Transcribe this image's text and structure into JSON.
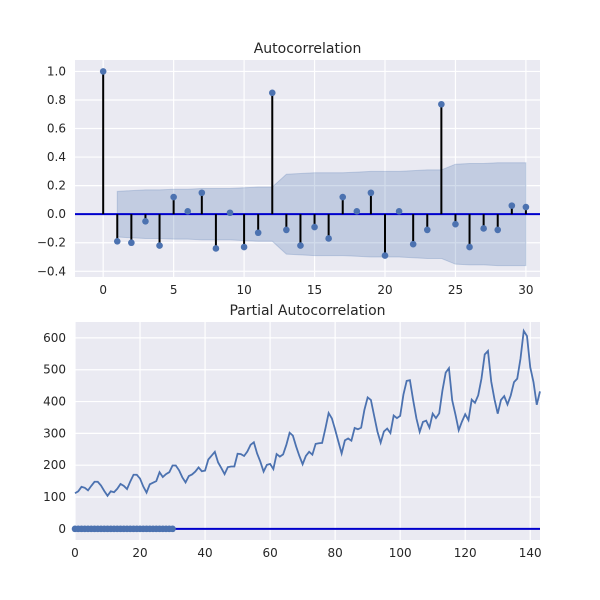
{
  "colors": {
    "background": "#eaeaf2",
    "grid": "#ffffff",
    "marker": "#4c72b0",
    "stem": "#000000",
    "zero_line": "#0000cc",
    "confint": "#4c72b0",
    "series_line": "#4c72b0"
  },
  "chart_data": [
    {
      "type": "stem",
      "title": "Autocorrelation",
      "xlim": [
        -2,
        31
      ],
      "ylim": [
        -0.44,
        1.08
      ],
      "xticks": [
        0,
        5,
        10,
        15,
        20,
        25,
        30
      ],
      "yticks": [
        -0.4,
        -0.2,
        0.0,
        0.2,
        0.4,
        0.6,
        0.8,
        1.0
      ],
      "xtick_labels": [
        "0",
        "5",
        "10",
        "15",
        "20",
        "25",
        "30"
      ],
      "ytick_labels": [
        "−0.4",
        "−0.2",
        "0.0",
        "0.2",
        "0.4",
        "0.6",
        "0.8",
        "1.0"
      ],
      "grid": true,
      "lags": [
        0,
        1,
        2,
        3,
        4,
        5,
        6,
        7,
        8,
        9,
        10,
        11,
        12,
        13,
        14,
        15,
        16,
        17,
        18,
        19,
        20,
        21,
        22,
        23,
        24,
        25,
        26,
        27,
        28,
        29,
        30
      ],
      "values": [
        1.0,
        -0.19,
        -0.2,
        -0.05,
        -0.22,
        0.12,
        0.02,
        0.15,
        -0.24,
        0.01,
        -0.23,
        -0.13,
        0.85,
        -0.11,
        -0.22,
        -0.09,
        -0.17,
        0.12,
        0.02,
        0.15,
        -0.29,
        0.02,
        -0.21,
        -0.11,
        0.77,
        -0.07,
        -0.23,
        -0.1,
        -0.11,
        0.06,
        0.05
      ],
      "confint_upper": [
        null,
        0.16,
        0.165,
        0.17,
        0.17,
        0.175,
        0.175,
        0.18,
        0.18,
        0.18,
        0.185,
        0.19,
        0.19,
        0.28,
        0.285,
        0.29,
        0.29,
        0.29,
        0.295,
        0.3,
        0.3,
        0.3,
        0.305,
        0.31,
        0.31,
        0.35,
        0.355,
        0.355,
        0.36,
        0.36,
        0.36
      ],
      "confint_lower": [
        null,
        -0.16,
        -0.165,
        -0.17,
        -0.17,
        -0.175,
        -0.175,
        -0.18,
        -0.18,
        -0.18,
        -0.185,
        -0.19,
        -0.19,
        -0.28,
        -0.285,
        -0.29,
        -0.29,
        -0.29,
        -0.295,
        -0.3,
        -0.3,
        -0.3,
        -0.305,
        -0.31,
        -0.31,
        -0.35,
        -0.355,
        -0.355,
        -0.36,
        -0.36,
        -0.36
      ]
    },
    {
      "type": "line",
      "title": "Partial Autocorrelation",
      "xlim": [
        0,
        143
      ],
      "ylim": [
        -35,
        650
      ],
      "xticks": [
        0,
        20,
        40,
        60,
        80,
        100,
        120,
        140
      ],
      "yticks": [
        0,
        100,
        200,
        300,
        400,
        500,
        600
      ],
      "xtick_labels": [
        "0",
        "20",
        "40",
        "60",
        "80",
        "100",
        "120",
        "140"
      ],
      "ytick_labels": [
        "0",
        "100",
        "200",
        "300",
        "400",
        "500",
        "600"
      ],
      "grid": true,
      "series": [
        {
          "values": [
            112,
            118,
            132,
            129,
            121,
            135,
            148,
            148,
            136,
            119,
            104,
            118,
            115,
            126,
            141,
            135,
            125,
            149,
            170,
            170,
            158,
            133,
            114,
            140,
            145,
            150,
            178,
            163,
            172,
            178,
            199,
            199,
            184,
            162,
            146,
            166,
            171,
            180,
            193,
            181,
            183,
            218,
            230,
            242,
            209,
            191,
            172,
            194,
            196,
            196,
            236,
            235,
            229,
            243,
            264,
            272,
            237,
            211,
            180,
            201,
            204,
            188,
            235,
            227,
            234,
            264,
            302,
            293,
            259,
            229,
            203,
            229,
            242,
            233,
            267,
            269,
            270,
            315,
            364,
            347,
            312,
            274,
            237,
            278,
            284,
            277,
            317,
            313,
            318,
            374,
            413,
            405,
            355,
            306,
            271,
            306,
            315,
            301,
            356,
            348,
            355,
            422,
            465,
            467,
            404,
            347,
            305,
            336,
            340,
            318,
            362,
            348,
            363,
            435,
            491,
            505,
            404,
            359,
            310,
            337,
            360,
            342,
            406,
            396,
            420,
            472,
            548,
            559,
            463,
            407,
            362,
            405,
            417,
            391,
            419,
            461,
            472,
            535,
            622,
            606,
            508,
            461,
            390,
            432
          ]
        }
      ],
      "stem_lags": [
        0,
        1,
        2,
        3,
        4,
        5,
        6,
        7,
        8,
        9,
        10,
        11,
        12,
        13,
        14,
        15,
        16,
        17,
        18,
        19,
        20,
        21,
        22,
        23,
        24,
        25,
        26,
        27,
        28,
        29,
        30
      ],
      "stem_values": [
        0,
        0,
        0,
        0,
        0,
        0,
        0,
        0,
        0,
        0,
        0,
        0,
        0,
        0,
        0,
        0,
        0,
        0,
        0,
        0,
        0,
        0,
        0,
        0,
        0,
        0,
        0,
        0,
        0,
        0,
        0
      ]
    }
  ]
}
